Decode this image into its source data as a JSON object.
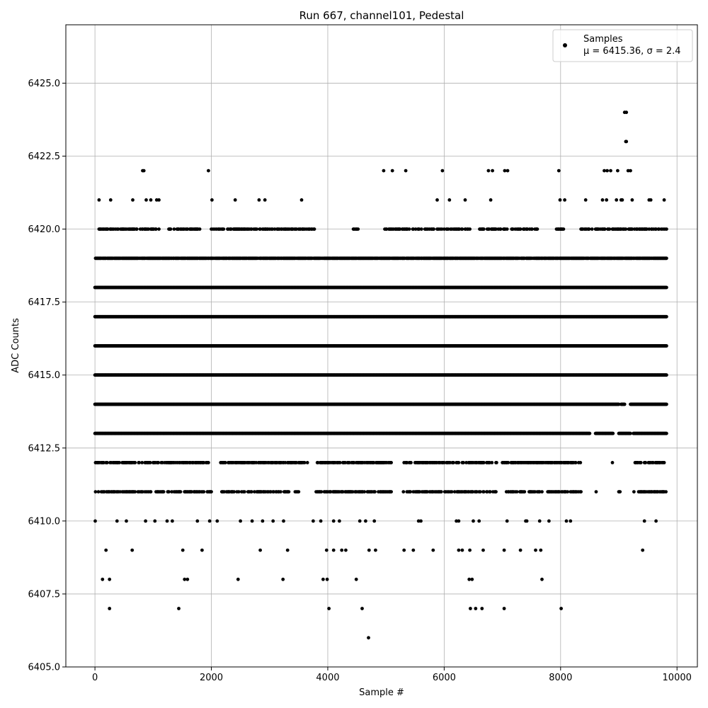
{
  "chart_data": {
    "type": "scatter",
    "title": "Run 667, channel101, Pedestal",
    "xlabel": "Sample #",
    "ylabel": "ADC Counts",
    "xlim": [
      -500,
      10350
    ],
    "ylim": [
      6405.0,
      6427.0
    ],
    "xticks": [
      0,
      2000,
      4000,
      6000,
      8000,
      10000
    ],
    "xtick_labels": [
      "0",
      "2000",
      "4000",
      "6000",
      "8000",
      "10000"
    ],
    "yticks": [
      6405.0,
      6407.5,
      6410.0,
      6412.5,
      6415.0,
      6417.5,
      6420.0,
      6422.5,
      6425.0
    ],
    "ytick_labels": [
      "6405.0",
      "6407.5",
      "6410.0",
      "6412.5",
      "6415.0",
      "6417.5",
      "6420.0",
      "6422.5",
      "6425.0"
    ],
    "grid": true,
    "legend_position": "top-right",
    "series": [
      {
        "name": "Samples",
        "label_line2": "μ = 6415.36, σ = 2.4",
        "color": "#000000",
        "points": [
          [
            5,
            6410
          ],
          [
            70,
            6421
          ],
          [
            190,
            6409
          ],
          [
            130,
            6408
          ],
          [
            250,
            6408
          ],
          [
            250,
            6407
          ],
          [
            270,
            6421
          ],
          [
            640,
            6409
          ],
          [
            650,
            6421
          ],
          [
            820,
            6422
          ],
          [
            840,
            6422
          ],
          [
            880,
            6421
          ],
          [
            960,
            6421
          ],
          [
            1030,
            6410
          ],
          [
            1060,
            6421
          ],
          [
            1100,
            6421
          ],
          [
            1240,
            6410
          ],
          [
            1330,
            6410
          ],
          [
            1440,
            6407
          ],
          [
            1510,
            6409
          ],
          [
            1540,
            6408
          ],
          [
            1590,
            6408
          ],
          [
            1840,
            6409
          ],
          [
            1950,
            6422
          ],
          [
            2010,
            6421
          ],
          [
            2410,
            6421
          ],
          [
            2460,
            6408
          ],
          [
            2500,
            6410
          ],
          [
            2820,
            6421
          ],
          [
            2840,
            6409
          ],
          [
            2920,
            6421
          ],
          [
            3230,
            6408
          ],
          [
            3240,
            6410
          ],
          [
            3310,
            6409
          ],
          [
            3550,
            6421
          ],
          [
            3920,
            6408
          ],
          [
            3980,
            6409
          ],
          [
            3990,
            6408
          ],
          [
            4020,
            6407
          ],
          [
            4490,
            6408
          ],
          [
            4590,
            6407
          ],
          [
            4700,
            6406
          ],
          [
            4710,
            6409
          ],
          [
            4820,
            6409
          ],
          [
            4960,
            6422
          ],
          [
            5110,
            6422
          ],
          [
            5340,
            6422
          ],
          [
            5310,
            6409
          ],
          [
            5470,
            6409
          ],
          [
            5810,
            6409
          ],
          [
            5880,
            6421
          ],
          [
            5970,
            6422
          ],
          [
            6090,
            6421
          ],
          [
            6250,
            6409
          ],
          [
            6310,
            6409
          ],
          [
            6360,
            6421
          ],
          [
            6430,
            6408
          ],
          [
            6440,
            6409
          ],
          [
            6450,
            6407
          ],
          [
            6480,
            6408
          ],
          [
            6540,
            6407
          ],
          [
            6650,
            6407
          ],
          [
            6670,
            6409
          ],
          [
            6760,
            6422
          ],
          [
            6800,
            6421
          ],
          [
            6830,
            6422
          ],
          [
            7030,
            6409
          ],
          [
            7040,
            6422
          ],
          [
            7090,
            6422
          ],
          [
            7030,
            6407
          ],
          [
            7080,
            6410
          ],
          [
            7310,
            6409
          ],
          [
            7570,
            6409
          ],
          [
            7640,
            6410
          ],
          [
            7660,
            6409
          ],
          [
            7680,
            6408
          ],
          [
            7970,
            6422
          ],
          [
            7990,
            6421
          ],
          [
            8010,
            6407
          ],
          [
            8070,
            6421
          ],
          [
            8430,
            6421
          ],
          [
            8890,
            6412
          ],
          [
            9100,
            6424
          ],
          [
            9130,
            6424
          ],
          [
            9120,
            6423
          ],
          [
            9130,
            6423
          ],
          [
            9410,
            6409
          ],
          [
            9440,
            6410
          ],
          [
            9550,
            6421
          ],
          [
            9640,
            6410
          ],
          [
            9780,
            6421
          ],
          [
            8750,
            6422
          ],
          [
            8800,
            6422
          ],
          [
            8860,
            6422
          ],
          [
            8980,
            6422
          ],
          [
            9160,
            6422
          ],
          [
            9060,
            6421
          ],
          [
            9200,
            6422
          ],
          [
            8720,
            6421
          ],
          [
            8790,
            6421
          ],
          [
            8960,
            6421
          ],
          [
            9040,
            6421
          ],
          [
            9230,
            6421
          ],
          [
            9520,
            6421
          ],
          [
            3750,
            6410
          ],
          [
            3880,
            6410
          ],
          [
            4100,
            6410
          ],
          [
            4200,
            6410
          ],
          [
            4550,
            6410
          ],
          [
            4650,
            6410
          ],
          [
            4800,
            6410
          ],
          [
            5560,
            6410
          ],
          [
            5600,
            6410
          ],
          [
            6210,
            6410
          ],
          [
            6250,
            6410
          ],
          [
            6500,
            6410
          ],
          [
            6600,
            6410
          ],
          [
            7400,
            6410
          ],
          [
            7420,
            6410
          ],
          [
            7800,
            6410
          ],
          [
            8100,
            6410
          ],
          [
            8170,
            6410
          ],
          [
            2100,
            6410
          ],
          [
            2700,
            6410
          ],
          [
            2880,
            6410
          ],
          [
            3060,
            6410
          ],
          [
            1760,
            6410
          ],
          [
            1970,
            6410
          ],
          [
            380,
            6410
          ],
          [
            540,
            6410
          ],
          [
            870,
            6410
          ],
          [
            4100,
            6409
          ],
          [
            4240,
            6409
          ],
          [
            4310,
            6409
          ]
        ]
      }
    ],
    "dense_bands": [
      {
        "y": 6411,
        "ranges": [
          [
            0,
            1000
          ],
          [
            1040,
            2000
          ],
          [
            2150,
            3500
          ],
          [
            3800,
            5100
          ],
          [
            5300,
            6900
          ],
          [
            7050,
            8350
          ],
          [
            8600,
            8620
          ],
          [
            8900,
            8920
          ],
          [
            9000,
            9020
          ],
          [
            9250,
            9820
          ]
        ],
        "density": 0.5
      },
      {
        "y": 6412,
        "ranges": [
          [
            0,
            700
          ],
          [
            740,
            1100
          ],
          [
            1140,
            1950
          ],
          [
            2160,
            3650
          ],
          [
            3820,
            5100
          ],
          [
            5300,
            6900
          ],
          [
            7000,
            8340
          ],
          [
            8900,
            8910
          ],
          [
            9260,
            9780
          ]
        ],
        "density": 0.6
      },
      {
        "y": 6413,
        "ranges": [
          [
            0,
            8500
          ],
          [
            8600,
            8900
          ],
          [
            9000,
            9200
          ],
          [
            9250,
            9820
          ]
        ],
        "density": 1.0
      },
      {
        "y": 6414,
        "ranges": [
          [
            0,
            9000
          ],
          [
            9040,
            9100
          ],
          [
            9200,
            9820
          ]
        ],
        "density": 1.0
      },
      {
        "y": 6415,
        "ranges": [
          [
            0,
            9820
          ]
        ],
        "density": 1.0
      },
      {
        "y": 6416,
        "ranges": [
          [
            0,
            9820
          ]
        ],
        "density": 1.0
      },
      {
        "y": 6417,
        "ranges": [
          [
            0,
            9820
          ]
        ],
        "density": 1.0
      },
      {
        "y": 6418,
        "ranges": [
          [
            0,
            9820
          ]
        ],
        "density": 1.0
      },
      {
        "y": 6419,
        "ranges": [
          [
            0,
            9820
          ]
        ],
        "density": 0.9
      },
      {
        "y": 6420,
        "ranges": [
          [
            70,
            1130
          ],
          [
            1270,
            1800
          ],
          [
            2000,
            3800
          ],
          [
            4440,
            4520
          ],
          [
            4960,
            6450
          ],
          [
            6600,
            7600
          ],
          [
            7900,
            8050
          ],
          [
            8350,
            9820
          ]
        ],
        "density": 0.5
      }
    ]
  }
}
